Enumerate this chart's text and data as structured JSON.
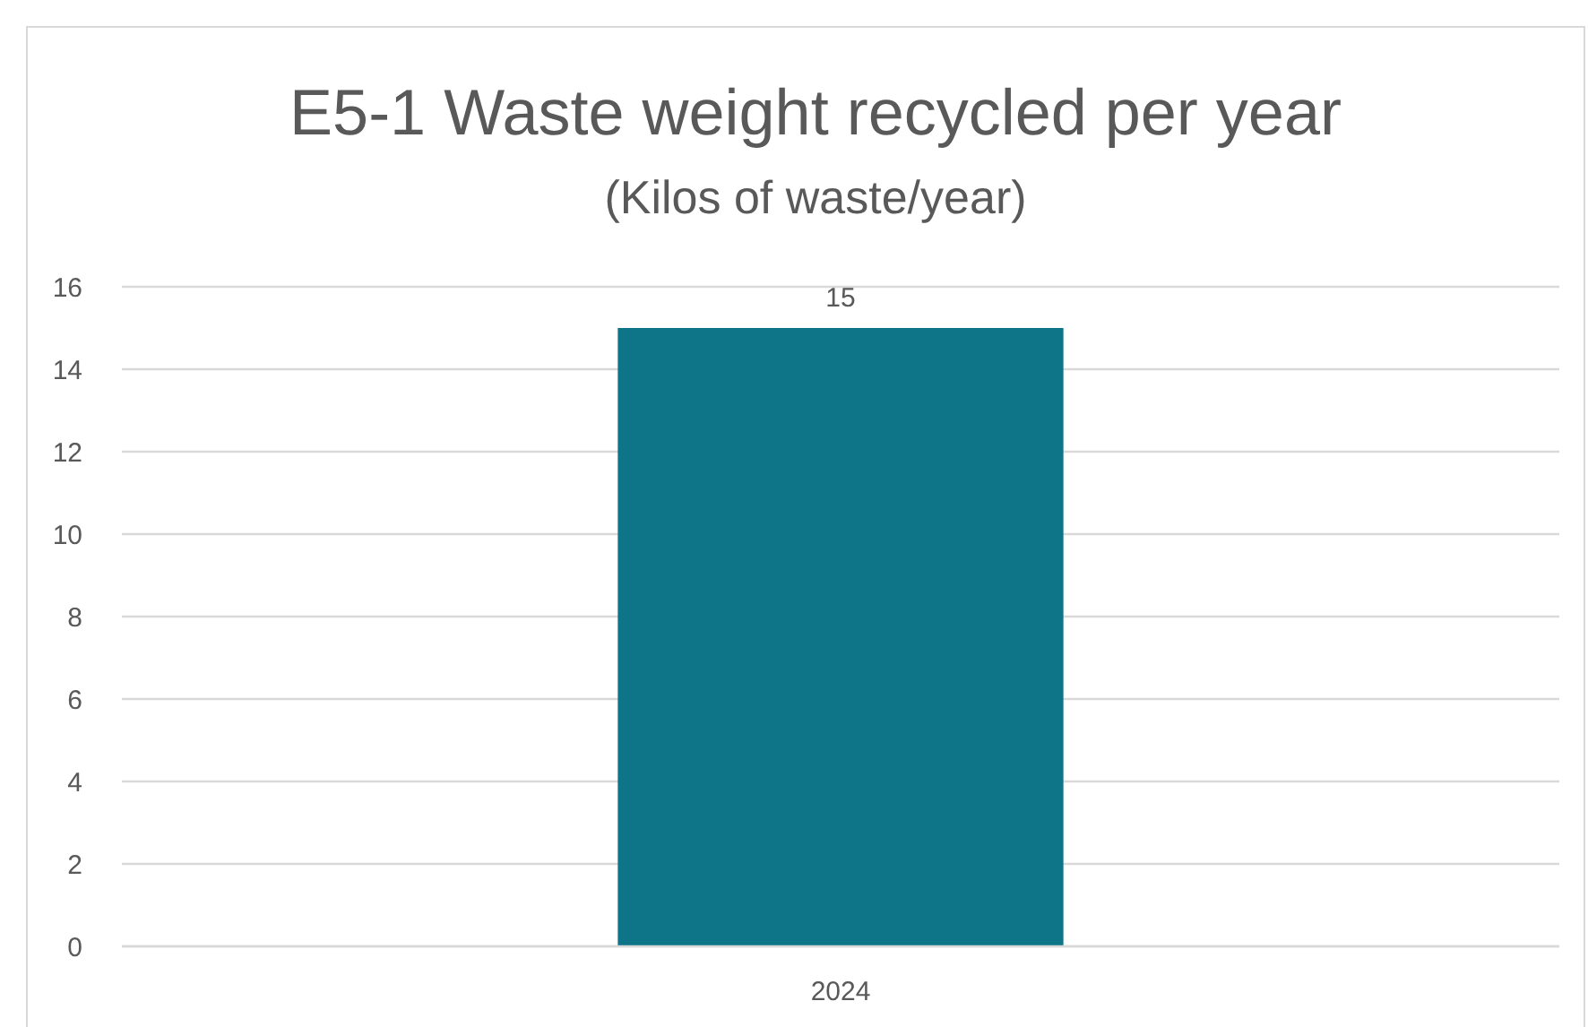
{
  "chart_data": {
    "type": "bar",
    "title": "E5-1 Waste weight recycled per year",
    "subtitle": "(Kilos of waste/year)",
    "categories": [
      "2024"
    ],
    "series": [
      {
        "color": "#0e7487",
        "values": [
          15
        ]
      }
    ],
    "ylim": [
      0,
      16
    ],
    "yticks": [
      0,
      2,
      4,
      6,
      8,
      10,
      12,
      14,
      16
    ],
    "grid": "y",
    "data_labels": true
  }
}
